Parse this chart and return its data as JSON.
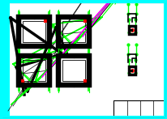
{
  "bg_color": "#ffffff",
  "cyan": "#00ffff",
  "black": "#000000",
  "green": "#00ff00",
  "red": "#ff0000",
  "magenta": "#ff00ff",
  "fig_width": 2.06,
  "fig_height": 1.47,
  "dpi": 100
}
